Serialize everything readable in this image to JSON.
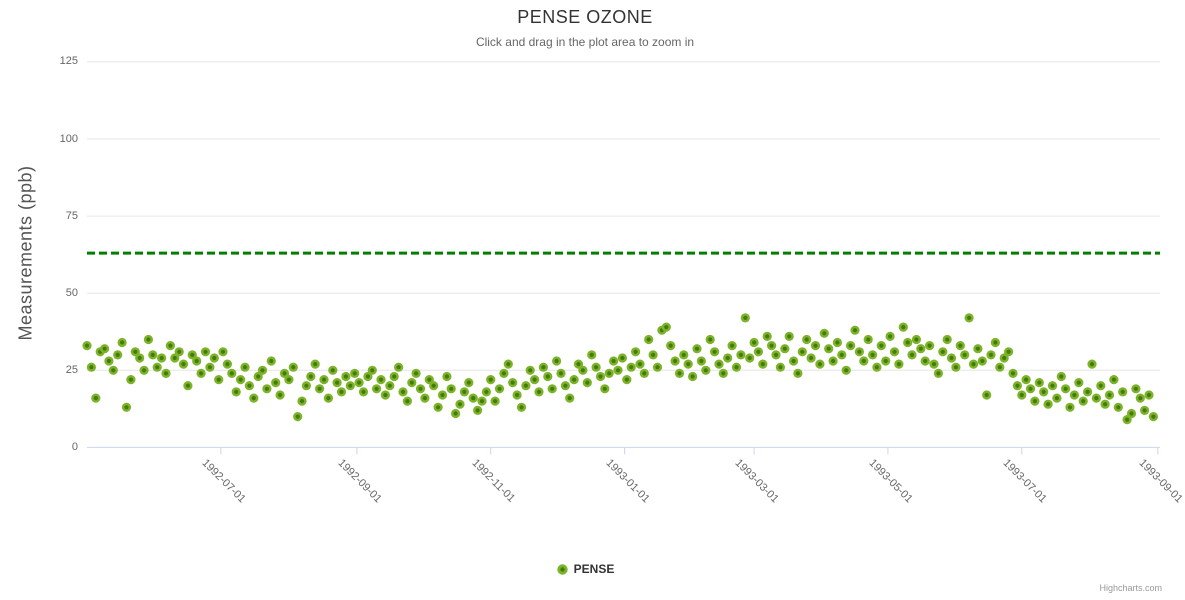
{
  "header": {
    "title": "PENSE OZONE",
    "subtitle": "Click and drag in the plot area to zoom in"
  },
  "y_axis": {
    "title": "Measurements (ppb)",
    "ticks": [
      0,
      25,
      50,
      75,
      100,
      125
    ]
  },
  "x_axis": {
    "ticks": [
      {
        "label": "1992-07-01",
        "day": 61
      },
      {
        "label": "1992-09-01",
        "day": 123
      },
      {
        "label": "1992-11-01",
        "day": 184
      },
      {
        "label": "1993-01-01",
        "day": 245
      },
      {
        "label": "1993-03-01",
        "day": 304
      },
      {
        "label": "1993-05-01",
        "day": 365
      },
      {
        "label": "1993-07-01",
        "day": 426
      },
      {
        "label": "1993-09-01",
        "day": 488
      }
    ]
  },
  "legend": {
    "items": [
      {
        "label": "PENSE"
      }
    ]
  },
  "credits": {
    "label": "Highcharts.com"
  },
  "colors": {
    "point_fill": "#7db32a",
    "point_center": "#447c09",
    "threshold": "#008000",
    "grid": "#e6e6e6",
    "axis": "#ccd6eb",
    "title": "#333333",
    "subtitle": "#666666",
    "labels": "#666666"
  },
  "chart_data": {
    "type": "scatter",
    "title": "PENSE OZONE",
    "subtitle": "Click and drag in the plot area to zoom in",
    "xlabel": "",
    "ylabel": "Measurements (ppb)",
    "ylim": [
      0,
      130
    ],
    "yticks": [
      0,
      25,
      50,
      75,
      100,
      125
    ],
    "grid": true,
    "legend_position": "bottom-center",
    "x_unit": "days_since_start",
    "x_start_date": "1992-05-01",
    "x_end_date": "1993-09-02",
    "x_total_days": 489,
    "xtick_labels": [
      "1992-07-01",
      "1992-09-01",
      "1992-11-01",
      "1993-01-01",
      "1993-03-01",
      "1993-05-01",
      "1993-07-01",
      "1993-09-01"
    ],
    "xtick_days": [
      61,
      123,
      184,
      245,
      304,
      365,
      426,
      488
    ],
    "plotline": {
      "y": 63,
      "color": "#008000",
      "dash": "Dash",
      "width": 3
    },
    "series": [
      {
        "name": "PENSE",
        "points": [
          [
            0,
            33
          ],
          [
            2,
            26
          ],
          [
            4,
            16
          ],
          [
            6,
            31
          ],
          [
            8,
            32
          ],
          [
            10,
            28
          ],
          [
            12,
            25
          ],
          [
            14,
            30
          ],
          [
            16,
            34
          ],
          [
            18,
            13
          ],
          [
            20,
            22
          ],
          [
            22,
            31
          ],
          [
            24,
            29
          ],
          [
            26,
            25
          ],
          [
            28,
            35
          ],
          [
            30,
            30
          ],
          [
            32,
            26
          ],
          [
            34,
            29
          ],
          [
            36,
            24
          ],
          [
            38,
            33
          ],
          [
            40,
            29
          ],
          [
            42,
            31
          ],
          [
            44,
            27
          ],
          [
            46,
            20
          ],
          [
            48,
            30
          ],
          [
            50,
            28
          ],
          [
            52,
            24
          ],
          [
            54,
            31
          ],
          [
            56,
            26
          ],
          [
            58,
            29
          ],
          [
            60,
            22
          ],
          [
            62,
            31
          ],
          [
            64,
            27
          ],
          [
            66,
            24
          ],
          [
            68,
            18
          ],
          [
            70,
            22
          ],
          [
            72,
            26
          ],
          [
            74,
            20
          ],
          [
            76,
            16
          ],
          [
            78,
            23
          ],
          [
            80,
            25
          ],
          [
            82,
            19
          ],
          [
            84,
            28
          ],
          [
            86,
            21
          ],
          [
            88,
            17
          ],
          [
            90,
            24
          ],
          [
            92,
            22
          ],
          [
            94,
            26
          ],
          [
            96,
            10
          ],
          [
            98,
            15
          ],
          [
            100,
            20
          ],
          [
            102,
            23
          ],
          [
            104,
            27
          ],
          [
            106,
            19
          ],
          [
            108,
            22
          ],
          [
            110,
            16
          ],
          [
            112,
            25
          ],
          [
            114,
            21
          ],
          [
            116,
            18
          ],
          [
            118,
            23
          ],
          [
            120,
            20
          ],
          [
            122,
            24
          ],
          [
            124,
            21
          ],
          [
            126,
            18
          ],
          [
            128,
            23
          ],
          [
            130,
            25
          ],
          [
            132,
            19
          ],
          [
            134,
            22
          ],
          [
            136,
            17
          ],
          [
            138,
            20
          ],
          [
            140,
            23
          ],
          [
            142,
            26
          ],
          [
            144,
            18
          ],
          [
            146,
            15
          ],
          [
            148,
            21
          ],
          [
            150,
            24
          ],
          [
            152,
            19
          ],
          [
            154,
            16
          ],
          [
            156,
            22
          ],
          [
            158,
            20
          ],
          [
            160,
            13
          ],
          [
            162,
            17
          ],
          [
            164,
            23
          ],
          [
            166,
            19
          ],
          [
            168,
            11
          ],
          [
            170,
            14
          ],
          [
            172,
            18
          ],
          [
            174,
            21
          ],
          [
            176,
            16
          ],
          [
            178,
            12
          ],
          [
            180,
            15
          ],
          [
            182,
            18
          ],
          [
            184,
            22
          ],
          [
            186,
            15
          ],
          [
            188,
            19
          ],
          [
            190,
            24
          ],
          [
            192,
            27
          ],
          [
            194,
            21
          ],
          [
            196,
            17
          ],
          [
            198,
            13
          ],
          [
            200,
            20
          ],
          [
            202,
            25
          ],
          [
            204,
            22
          ],
          [
            206,
            18
          ],
          [
            208,
            26
          ],
          [
            210,
            23
          ],
          [
            212,
            19
          ],
          [
            214,
            28
          ],
          [
            216,
            24
          ],
          [
            218,
            20
          ],
          [
            220,
            16
          ],
          [
            222,
            22
          ],
          [
            224,
            27
          ],
          [
            226,
            25
          ],
          [
            228,
            21
          ],
          [
            230,
            30
          ],
          [
            232,
            26
          ],
          [
            234,
            23
          ],
          [
            236,
            19
          ],
          [
            238,
            24
          ],
          [
            240,
            28
          ],
          [
            242,
            25
          ],
          [
            244,
            29
          ],
          [
            246,
            22
          ],
          [
            248,
            26
          ],
          [
            250,
            31
          ],
          [
            252,
            27
          ],
          [
            254,
            24
          ],
          [
            256,
            35
          ],
          [
            258,
            30
          ],
          [
            260,
            26
          ],
          [
            262,
            38
          ],
          [
            264,
            39
          ],
          [
            266,
            33
          ],
          [
            268,
            28
          ],
          [
            270,
            24
          ],
          [
            272,
            30
          ],
          [
            274,
            27
          ],
          [
            276,
            23
          ],
          [
            278,
            32
          ],
          [
            280,
            28
          ],
          [
            282,
            25
          ],
          [
            284,
            35
          ],
          [
            286,
            31
          ],
          [
            288,
            27
          ],
          [
            290,
            24
          ],
          [
            292,
            29
          ],
          [
            294,
            33
          ],
          [
            296,
            26
          ],
          [
            298,
            30
          ],
          [
            300,
            42
          ],
          [
            302,
            29
          ],
          [
            304,
            34
          ],
          [
            306,
            31
          ],
          [
            308,
            27
          ],
          [
            310,
            36
          ],
          [
            312,
            33
          ],
          [
            314,
            30
          ],
          [
            316,
            26
          ],
          [
            318,
            32
          ],
          [
            320,
            36
          ],
          [
            322,
            28
          ],
          [
            324,
            24
          ],
          [
            326,
            31
          ],
          [
            328,
            35
          ],
          [
            330,
            29
          ],
          [
            332,
            33
          ],
          [
            334,
            27
          ],
          [
            336,
            37
          ],
          [
            338,
            32
          ],
          [
            340,
            28
          ],
          [
            342,
            34
          ],
          [
            344,
            30
          ],
          [
            346,
            25
          ],
          [
            348,
            33
          ],
          [
            350,
            38
          ],
          [
            352,
            31
          ],
          [
            354,
            28
          ],
          [
            356,
            35
          ],
          [
            358,
            30
          ],
          [
            360,
            26
          ],
          [
            362,
            33
          ],
          [
            364,
            28
          ],
          [
            366,
            36
          ],
          [
            368,
            31
          ],
          [
            370,
            27
          ],
          [
            372,
            39
          ],
          [
            374,
            34
          ],
          [
            376,
            30
          ],
          [
            378,
            35
          ],
          [
            380,
            32
          ],
          [
            382,
            28
          ],
          [
            384,
            33
          ],
          [
            386,
            27
          ],
          [
            388,
            24
          ],
          [
            390,
            31
          ],
          [
            392,
            35
          ],
          [
            394,
            29
          ],
          [
            396,
            26
          ],
          [
            398,
            33
          ],
          [
            400,
            30
          ],
          [
            402,
            42
          ],
          [
            404,
            27
          ],
          [
            406,
            32
          ],
          [
            408,
            28
          ],
          [
            410,
            17
          ],
          [
            412,
            30
          ],
          [
            414,
            34
          ],
          [
            416,
            26
          ],
          [
            418,
            29
          ],
          [
            420,
            31
          ],
          [
            422,
            24
          ],
          [
            424,
            20
          ],
          [
            426,
            17
          ],
          [
            428,
            22
          ],
          [
            430,
            19
          ],
          [
            432,
            15
          ],
          [
            434,
            21
          ],
          [
            436,
            18
          ],
          [
            438,
            14
          ],
          [
            440,
            20
          ],
          [
            442,
            16
          ],
          [
            444,
            23
          ],
          [
            446,
            19
          ],
          [
            448,
            13
          ],
          [
            450,
            17
          ],
          [
            452,
            21
          ],
          [
            454,
            15
          ],
          [
            456,
            18
          ],
          [
            458,
            27
          ],
          [
            460,
            16
          ],
          [
            462,
            20
          ],
          [
            464,
            14
          ],
          [
            466,
            17
          ],
          [
            468,
            22
          ],
          [
            470,
            13
          ],
          [
            472,
            18
          ],
          [
            474,
            9
          ],
          [
            476,
            11
          ],
          [
            478,
            19
          ],
          [
            480,
            16
          ],
          [
            482,
            12
          ],
          [
            484,
            17
          ],
          [
            486,
            10
          ]
        ]
      }
    ]
  }
}
